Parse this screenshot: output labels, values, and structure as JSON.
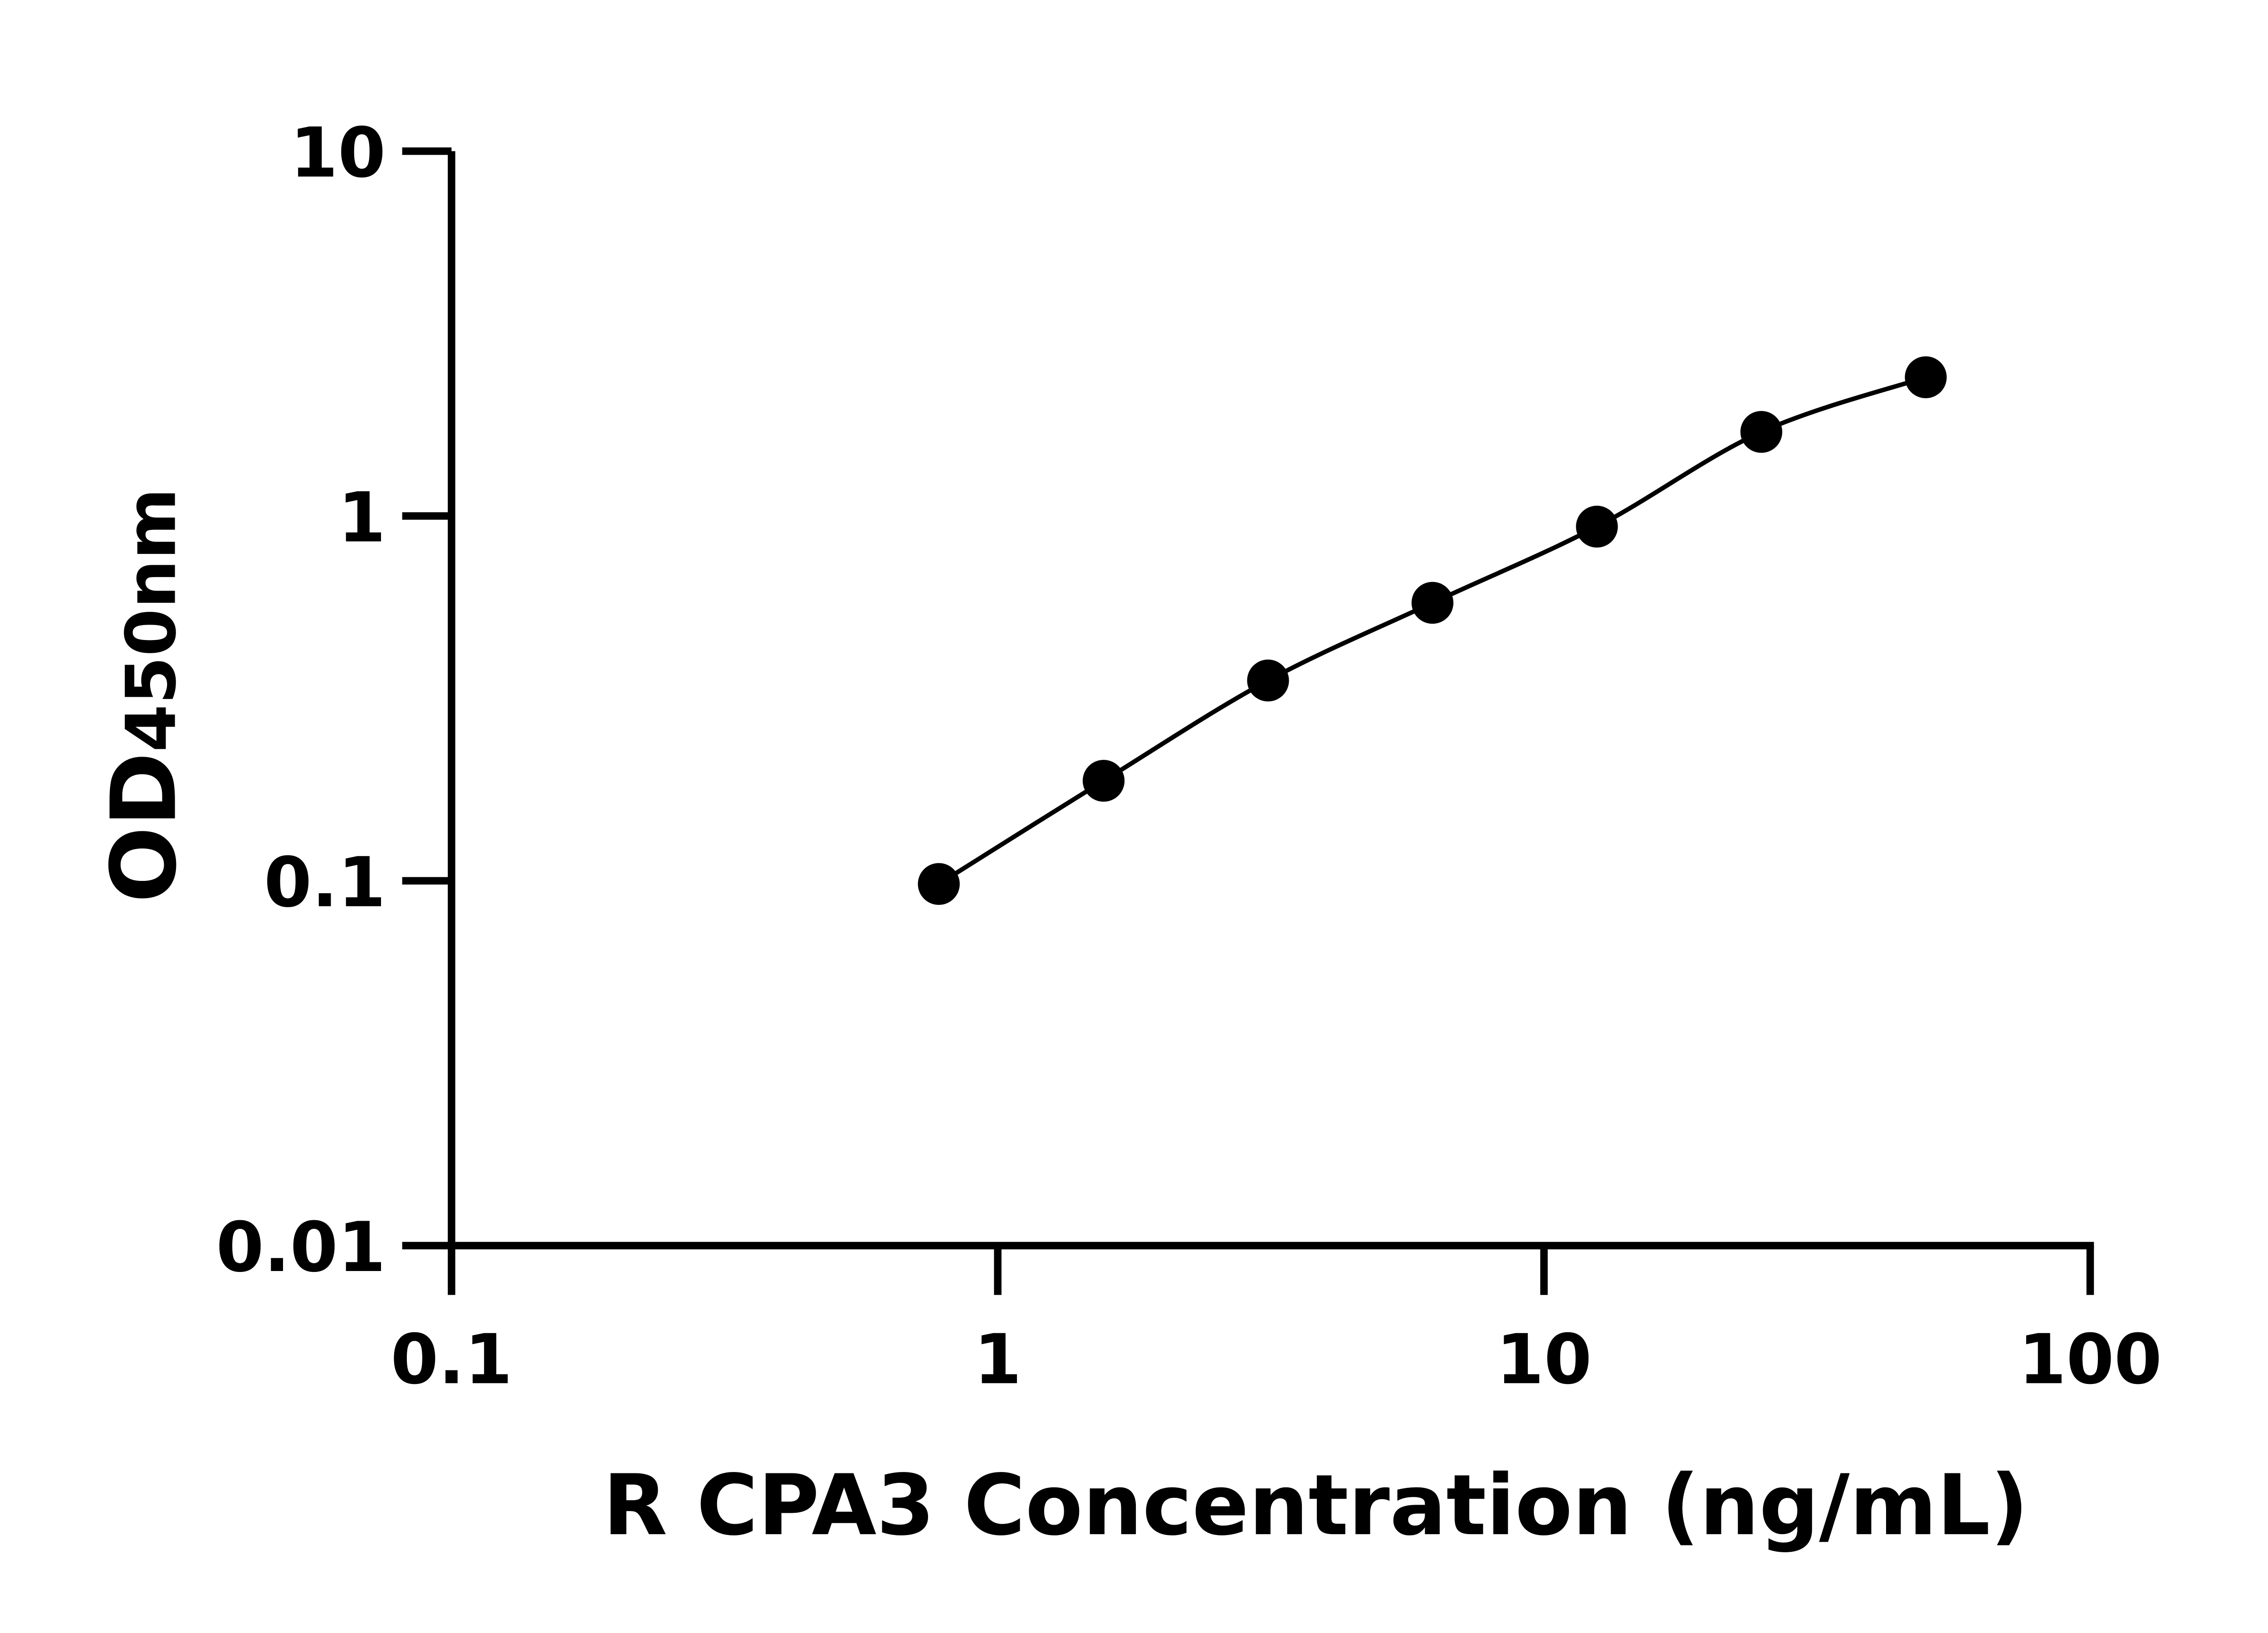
{
  "chart_data": {
    "type": "scatter",
    "title": "",
    "xlabel": "R CPA3 Concentration (ng/mL)",
    "ylabel": {
      "main": "OD",
      "sub": "450nm"
    },
    "x_scale": "log",
    "y_scale": "log",
    "xlim": [
      0.1,
      100
    ],
    "ylim": [
      0.01,
      10
    ],
    "x_ticks": [
      "0.1",
      "1",
      "10",
      "100"
    ],
    "y_ticks": [
      "0.01",
      "0.1",
      "1",
      "10"
    ],
    "grid": false,
    "fit_line": true,
    "colors": {
      "points": "#000000",
      "line": "#000000"
    },
    "series": [
      {
        "x": [
          0.78,
          1.5625,
          3.125,
          6.25,
          12.5,
          25,
          50
        ],
        "y": [
          0.098,
          0.188,
          0.354,
          0.578,
          0.935,
          1.7,
          2.4
        ]
      }
    ]
  }
}
